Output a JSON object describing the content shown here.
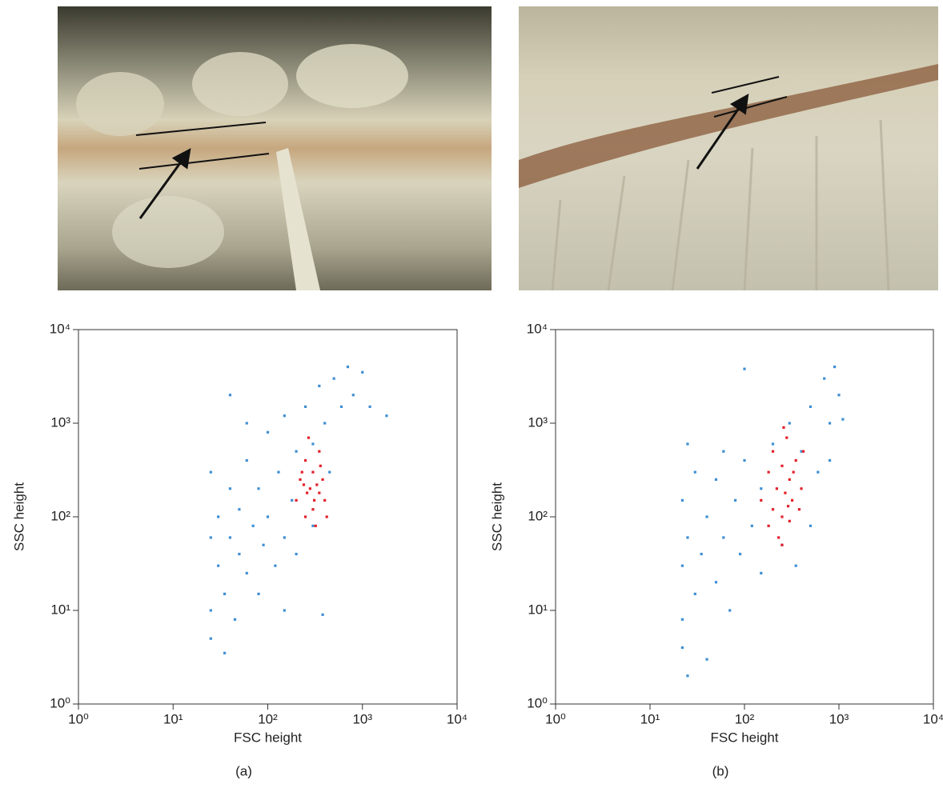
{
  "chart_data": [
    {
      "type": "scatter",
      "x_label": "FSC height",
      "y_label": "SSC height",
      "caption": "(a)",
      "xscale": "log",
      "yscale": "log",
      "xlim": [
        1,
        10000
      ],
      "ylim": [
        1,
        10000
      ],
      "xticks": [
        {
          "value": 1,
          "label": "10⁰"
        },
        {
          "value": 10,
          "label": "10¹"
        },
        {
          "value": 100,
          "label": "10²"
        },
        {
          "value": 1000,
          "label": "10³"
        },
        {
          "value": 10000,
          "label": "10⁴"
        }
      ],
      "yticks": [
        {
          "value": 1,
          "label": "10⁰"
        },
        {
          "value": 10,
          "label": "10¹"
        },
        {
          "value": 100,
          "label": "10²"
        },
        {
          "value": 1000,
          "label": "10³"
        },
        {
          "value": 10000,
          "label": "10⁴"
        }
      ],
      "series": [
        {
          "color": "#3f8fd2",
          "x": [
            25,
            25,
            25,
            25,
            30,
            30,
            35,
            40,
            40,
            45,
            50,
            50,
            60,
            60,
            70,
            80,
            80,
            90,
            100,
            100,
            120,
            130,
            150,
            150,
            180,
            200,
            200,
            250,
            300,
            300,
            350,
            400,
            450,
            500,
            600,
            700,
            800,
            1000,
            1200,
            1800,
            40,
            60,
            35,
            380,
            150
          ],
          "values": [
            60,
            10,
            300,
            5,
            100,
            30,
            15,
            60,
            200,
            8,
            40,
            120,
            25,
            400,
            80,
            15,
            200,
            50,
            100,
            800,
            30,
            300,
            60,
            1200,
            150,
            500,
            40,
            1500,
            80,
            600,
            2500,
            1000,
            300,
            3000,
            1500,
            4000,
            2000,
            3500,
            1500,
            1200,
            2000,
            1000,
            3.5,
            9,
            10
          ]
        },
        {
          "color": "#e3202a",
          "x": [
            200,
            220,
            250,
            250,
            280,
            300,
            300,
            320,
            350,
            350,
            380,
            400,
            270,
            230,
            330,
            420,
            260,
            310,
            360,
            240
          ],
          "values": [
            150,
            250,
            100,
            400,
            200,
            120,
            300,
            80,
            180,
            500,
            250,
            150,
            700,
            300,
            220,
            100,
            180,
            150,
            350,
            220
          ]
        }
      ]
    },
    {
      "type": "scatter",
      "x_label": "FSC height",
      "y_label": "SSC height",
      "caption": "(b)",
      "xscale": "log",
      "yscale": "log",
      "xlim": [
        1,
        10000
      ],
      "ylim": [
        1,
        10000
      ],
      "xticks": [
        {
          "value": 1,
          "label": "10⁰"
        },
        {
          "value": 10,
          "label": "10¹"
        },
        {
          "value": 100,
          "label": "10²"
        },
        {
          "value": 1000,
          "label": "10³"
        },
        {
          "value": 10000,
          "label": "10⁴"
        }
      ],
      "yticks": [
        {
          "value": 1,
          "label": "10⁰"
        },
        {
          "value": 10,
          "label": "10¹"
        },
        {
          "value": 100,
          "label": "10²"
        },
        {
          "value": 1000,
          "label": "10³"
        },
        {
          "value": 10000,
          "label": "10⁴"
        }
      ],
      "series": [
        {
          "color": "#3f8fd2",
          "x": [
            22,
            22,
            22,
            22,
            25,
            25,
            30,
            30,
            35,
            40,
            40,
            50,
            50,
            60,
            70,
            80,
            90,
            100,
            100,
            120,
            150,
            150,
            200,
            250,
            300,
            350,
            400,
            500,
            500,
            600,
            700,
            800,
            900,
            1000,
            1100,
            25,
            60,
            800
          ],
          "values": [
            30,
            8,
            150,
            4,
            60,
            600,
            15,
            300,
            40,
            3,
            100,
            20,
            250,
            60,
            10,
            150,
            40,
            400,
            3800,
            80,
            200,
            25,
            600,
            50,
            1000,
            30,
            500,
            1500,
            80,
            300,
            3000,
            1000,
            4000,
            2000,
            1100,
            2,
            500,
            400
          ]
        },
        {
          "color": "#e3202a",
          "x": [
            150,
            180,
            180,
            200,
            200,
            220,
            230,
            250,
            250,
            270,
            280,
            300,
            300,
            320,
            350,
            380,
            400,
            420,
            250,
            330,
            260,
            290
          ],
          "values": [
            150,
            80,
            300,
            120,
            500,
            200,
            60,
            100,
            350,
            180,
            700,
            90,
            250,
            150,
            400,
            120,
            200,
            500,
            50,
            300,
            900,
            130
          ]
        }
      ]
    }
  ]
}
